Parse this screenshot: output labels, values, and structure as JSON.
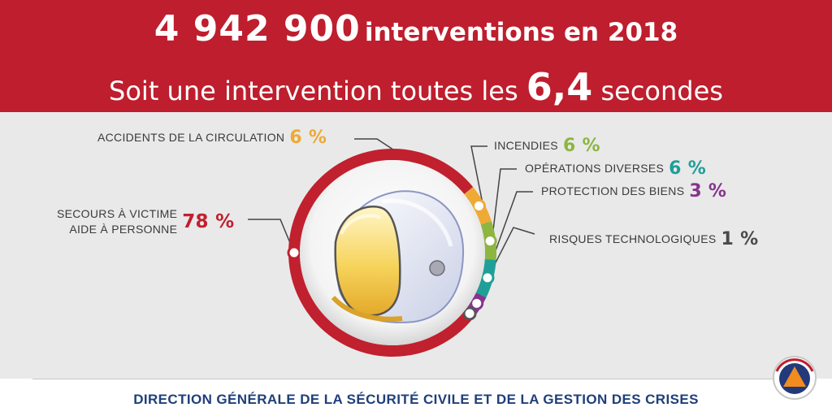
{
  "header": {
    "big_number": "4 942 900",
    "line1_rest": "interventions en 2018",
    "line2_prefix": "Soit une intervention toutes les",
    "line2_value": "6,4",
    "line2_suffix": "secondes"
  },
  "chart_data": {
    "type": "pie",
    "slices": [
      {
        "label": "SECOURS À VICTIME AIDE À PERSONNE",
        "label_lines": [
          "SECOURS À VICTIME",
          "AIDE À PERSONNE"
        ],
        "value": 78,
        "display": "78 %",
        "color": "#c1202e"
      },
      {
        "label": "ACCIDENTS DE LA CIRCULATION",
        "value": 6,
        "display": "6 %",
        "color": "#efa935"
      },
      {
        "label": "INCENDIES",
        "value": 6,
        "display": "6 %",
        "color": "#8cb640"
      },
      {
        "label": "OPÉRATIONS DIVERSES",
        "value": 6,
        "display": "6 %",
        "color": "#1f9f98"
      },
      {
        "label": "PROTECTION DES BIENS",
        "value": 3,
        "display": "3 %",
        "color": "#86358c"
      },
      {
        "label": "RISQUES TECHNOLOGIQUES",
        "value": 1,
        "display": "1 %",
        "color": "#4a4a4a"
      }
    ]
  },
  "footer": {
    "text": "DIRECTION GÉNÉRALE DE LA SÉCURITÉ CIVILE ET DE LA GESTION DES CRISES"
  },
  "icons": {
    "helmet": "firefighter-helmet-icon",
    "logo": "civil-protection-logo-icon"
  }
}
